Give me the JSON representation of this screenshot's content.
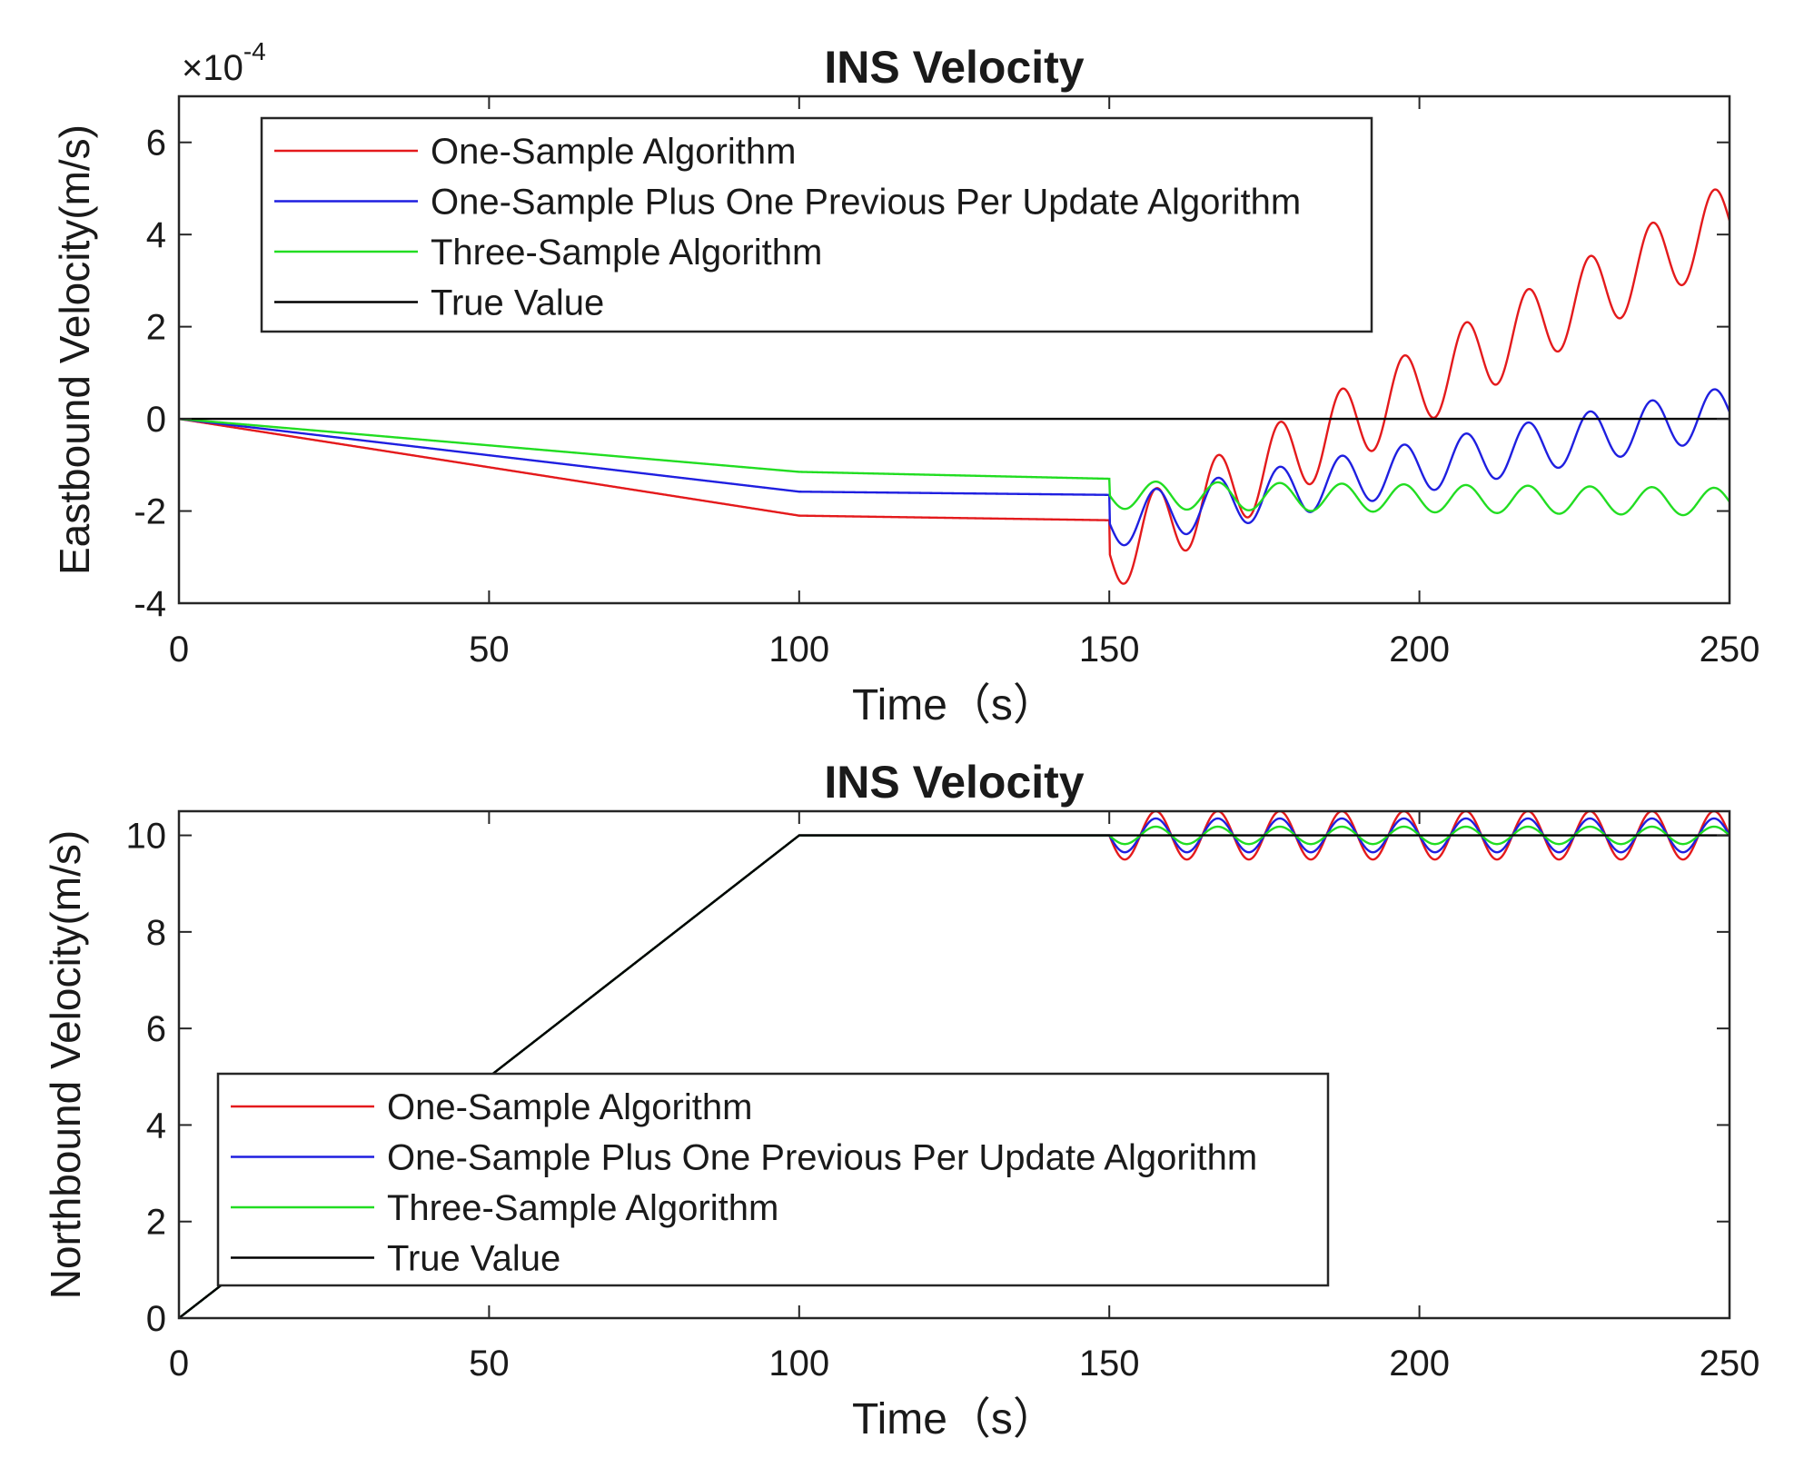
{
  "chart_data": [
    {
      "type": "line",
      "title": "INS Velocity",
      "xlabel": "Time（s）",
      "ylabel": "Eastbound Velocity(m/s)",
      "y_exponent_label": "×10",
      "y_exponent_power": "-4",
      "xlim": [
        0,
        250
      ],
      "ylim": [
        -4,
        7
      ],
      "xticks": [
        0,
        50,
        100,
        150,
        200,
        250
      ],
      "xtick_labels": [
        "0",
        "50",
        "100",
        "150",
        "200",
        "250"
      ],
      "yticks": [
        -4,
        -2,
        0,
        2,
        4,
        6
      ],
      "ytick_labels": [
        "-4",
        "-2",
        "0",
        "2",
        "4",
        "6"
      ],
      "legend_location": "top-left",
      "series": [
        {
          "name": "One-Sample Algorithm",
          "color": "#e41a1c",
          "segments": [
            [
              0,
              0
            ],
            [
              100,
              -2.1
            ],
            [
              150,
              -2.2
            ]
          ],
          "oscillation": {
            "start": 150,
            "period": 10,
            "offset_start": -2.9,
            "offset_slope": 0.072,
            "amplitude": 0.85,
            "amplitude_slope": 0.0
          }
        },
        {
          "name": "One-Sample Plus One Previous Per Update Algorithm",
          "color": "#1f1fe0",
          "segments": [
            [
              0,
              0
            ],
            [
              100,
              -1.58
            ],
            [
              150,
              -1.65
            ]
          ],
          "oscillation": {
            "start": 150,
            "period": 10,
            "offset_start": -2.25,
            "offset_slope": 0.024,
            "amplitude": 0.55,
            "amplitude_slope": 0.0
          }
        },
        {
          "name": "Three-Sample Algorithm",
          "color": "#22dd22",
          "segments": [
            [
              0,
              0
            ],
            [
              100,
              -1.15
            ],
            [
              150,
              -1.3
            ]
          ],
          "oscillation": {
            "start": 150,
            "period": 10,
            "offset_start": -1.65,
            "offset_slope": -0.0015,
            "amplitude": 0.3,
            "amplitude_slope": 0.0
          }
        },
        {
          "name": "True Value",
          "color": "#000000",
          "segments": [
            [
              0,
              0
            ],
            [
              250,
              0
            ]
          ]
        }
      ]
    },
    {
      "type": "line",
      "title": "INS Velocity",
      "xlabel": "Time（s）",
      "ylabel": "Northbound Velocity(m/s)",
      "xlim": [
        0,
        250
      ],
      "ylim": [
        0,
        10.5
      ],
      "xticks": [
        0,
        50,
        100,
        150,
        200,
        250
      ],
      "xtick_labels": [
        "0",
        "50",
        "100",
        "150",
        "200",
        "250"
      ],
      "yticks": [
        0,
        2,
        4,
        6,
        8,
        10
      ],
      "ytick_labels": [
        "0",
        "2",
        "4",
        "6",
        "8",
        "10"
      ],
      "legend_location": "bottom-left",
      "series": [
        {
          "name": "One-Sample Algorithm",
          "color": "#e41a1c",
          "segments": [
            [
              0,
              0
            ],
            [
              100,
              10
            ],
            [
              150,
              10
            ]
          ],
          "oscillation": {
            "start": 150,
            "period": 10,
            "offset_start": 10.0,
            "offset_slope": 0.0,
            "amplitude": 0.5,
            "amplitude_slope": 0.0
          }
        },
        {
          "name": "One-Sample Plus One Previous Per Update Algorithm",
          "color": "#1f1fe0",
          "segments": [
            [
              0,
              0
            ],
            [
              100,
              10
            ],
            [
              150,
              10
            ]
          ],
          "oscillation": {
            "start": 150,
            "period": 10,
            "offset_start": 10.0,
            "offset_slope": 0.0,
            "amplitude": 0.35,
            "amplitude_slope": 0.0
          }
        },
        {
          "name": "Three-Sample Algorithm",
          "color": "#22dd22",
          "segments": [
            [
              0,
              0
            ],
            [
              100,
              10
            ],
            [
              150,
              10
            ]
          ],
          "oscillation": {
            "start": 150,
            "period": 10,
            "offset_start": 10.0,
            "offset_slope": 0.0,
            "amplitude": 0.18,
            "amplitude_slope": 0.0
          }
        },
        {
          "name": "True Value",
          "color": "#000000",
          "segments": [
            [
              0,
              0
            ],
            [
              100,
              10
            ],
            [
              250,
              10
            ]
          ]
        }
      ]
    }
  ]
}
